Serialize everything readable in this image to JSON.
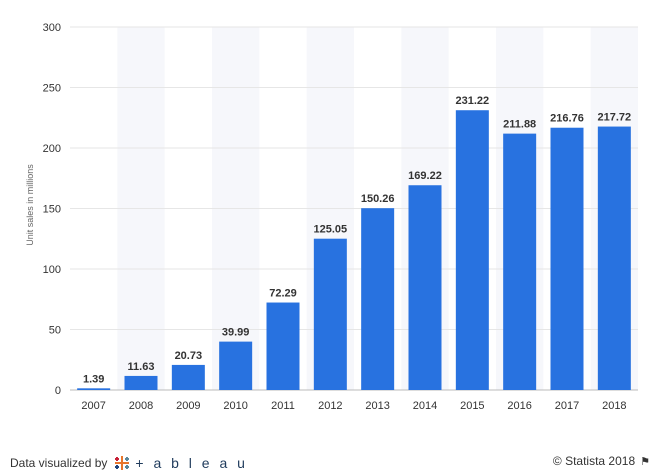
{
  "chart_data": {
    "type": "bar",
    "categories": [
      "2007",
      "2008",
      "2009",
      "2010",
      "2011",
      "2012",
      "2013",
      "2014",
      "2015",
      "2016",
      "2017",
      "2018"
    ],
    "values": [
      1.39,
      11.63,
      20.73,
      39.99,
      72.29,
      125.05,
      150.26,
      169.22,
      231.22,
      211.88,
      216.76,
      217.72
    ],
    "value_labels": [
      "1.39",
      "11.63",
      "20.73",
      "39.99",
      "72.29",
      "125.05",
      "150.26",
      "169.22",
      "231.22",
      "211.88",
      "216.76",
      "217.72"
    ],
    "title": "",
    "xlabel": "",
    "ylabel": "Unit sales in millions",
    "ylim": [
      0,
      300
    ],
    "yticks": [
      0,
      50,
      100,
      150,
      200,
      250,
      300
    ],
    "grid": true,
    "bar_color": "#2872e0",
    "stripe_color": "#f6f7fb"
  },
  "footer": {
    "credit": "Data visualized by",
    "tableau": "+ a b l e a u",
    "copyright": "© Statista 2018",
    "flag_icon": "flag-icon"
  }
}
